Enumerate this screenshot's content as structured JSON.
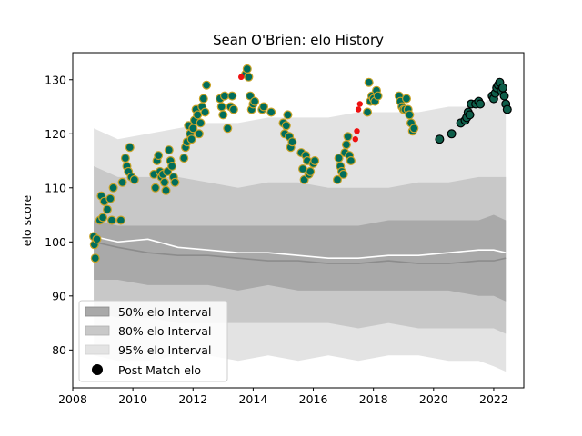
{
  "chart_data": {
    "type": "scatter",
    "title": "Sean O'Brien: elo History",
    "xlabel": "",
    "ylabel": "elo score",
    "xlim": [
      2008.0,
      2023.0
    ],
    "ylim": [
      73.0,
      135.0
    ],
    "xticks": [
      2008,
      2010,
      2012,
      2014,
      2016,
      2018,
      2020,
      2022
    ],
    "yticks": [
      80,
      90,
      100,
      110,
      120,
      130
    ],
    "grid": false,
    "legend_position": "lower-left",
    "legend": [
      {
        "label": "50% elo Interval",
        "kind": "patch",
        "color": "#a9a9a9"
      },
      {
        "label": "80% elo Interval",
        "kind": "patch",
        "color": "#c8c8c8"
      },
      {
        "label": "95% elo Interval",
        "kind": "patch",
        "color": "#e3e3e3"
      },
      {
        "label": "Post Match elo",
        "kind": "marker",
        "color": "#000000"
      }
    ],
    "intervals": {
      "x": [
        2008.7,
        2009.5,
        2010.5,
        2011.5,
        2012.5,
        2013.5,
        2014.5,
        2015.5,
        2016.5,
        2017.5,
        2018.5,
        2019.5,
        2020.5,
        2021.5,
        2022.0,
        2022.4
      ],
      "p95_hi": [
        121,
        119,
        120,
        121,
        122,
        122,
        123,
        123,
        123,
        124,
        124,
        124,
        125,
        125,
        127,
        126
      ],
      "p95_lo": [
        79,
        78,
        78,
        79,
        79,
        78,
        79,
        78,
        79,
        78,
        79,
        79,
        78,
        78,
        77,
        76
      ],
      "p80_hi": [
        114,
        112,
        112,
        112,
        111,
        110,
        111,
        111,
        110,
        110,
        110,
        111,
        111,
        112,
        112,
        112
      ],
      "p80_lo": [
        87,
        86,
        86,
        85,
        85,
        85,
        85,
        85,
        85,
        84,
        85,
        84,
        84,
        84,
        84,
        83
      ],
      "p50_hi": [
        104,
        103,
        103,
        103,
        103,
        103,
        103,
        103,
        103,
        103,
        104,
        104,
        104,
        104,
        105,
        104
      ],
      "p50_lo": [
        93,
        93,
        92,
        92,
        92,
        91,
        92,
        91,
        91,
        91,
        91,
        91,
        91,
        90,
        90,
        89
      ],
      "mean_white": [
        101,
        100,
        100.5,
        99,
        98.5,
        98,
        98,
        97.5,
        97,
        97,
        97.5,
        97.5,
        98,
        98.5,
        98.5,
        98
      ],
      "median_gray": [
        100,
        99,
        98,
        97.5,
        97.5,
        97,
        96.5,
        96.5,
        96,
        96,
        96.5,
        96,
        96,
        96.5,
        96.5,
        97
      ]
    },
    "series": [
      {
        "name": "Post Match elo",
        "style": "blue-gold",
        "fill": "#006d5b",
        "edge": "#c9a227",
        "points": [
          [
            2008.7,
            101
          ],
          [
            2008.72,
            99.5
          ],
          [
            2008.75,
            97
          ],
          [
            2008.8,
            100.5
          ],
          [
            2008.9,
            104
          ],
          [
            2008.95,
            108.5
          ],
          [
            2009.0,
            104.5
          ],
          [
            2009.05,
            107.5
          ],
          [
            2009.15,
            106
          ],
          [
            2009.25,
            108
          ],
          [
            2009.3,
            104
          ],
          [
            2009.35,
            110
          ],
          [
            2009.6,
            104
          ],
          [
            2009.65,
            111
          ],
          [
            2009.75,
            115.5
          ],
          [
            2009.8,
            114
          ],
          [
            2009.85,
            113
          ],
          [
            2009.9,
            117.5
          ],
          [
            2009.95,
            112
          ],
          [
            2010.05,
            111.5
          ],
          [
            2010.7,
            112.5
          ],
          [
            2010.75,
            110
          ],
          [
            2010.8,
            115
          ],
          [
            2010.85,
            116
          ],
          [
            2010.9,
            113
          ],
          [
            2010.95,
            112
          ],
          [
            2011.0,
            112.5
          ],
          [
            2011.05,
            111
          ],
          [
            2011.1,
            109.5
          ],
          [
            2011.15,
            113
          ],
          [
            2011.2,
            117
          ],
          [
            2011.25,
            115
          ],
          [
            2011.3,
            114
          ],
          [
            2011.35,
            112
          ],
          [
            2011.4,
            111
          ],
          [
            2011.7,
            115.5
          ],
          [
            2011.75,
            117.5
          ],
          [
            2011.8,
            118.5
          ],
          [
            2011.85,
            121.5
          ],
          [
            2011.9,
            120
          ],
          [
            2011.95,
            119
          ],
          [
            2012.0,
            121
          ],
          [
            2012.05,
            122.5
          ],
          [
            2012.1,
            124.5
          ],
          [
            2012.15,
            123.5
          ],
          [
            2012.2,
            120
          ],
          [
            2012.25,
            122
          ],
          [
            2012.3,
            125
          ],
          [
            2012.35,
            126.5
          ],
          [
            2012.4,
            124
          ],
          [
            2012.45,
            129
          ],
          [
            2012.9,
            126.5
          ],
          [
            2012.95,
            125
          ],
          [
            2013.0,
            123.5
          ],
          [
            2013.05,
            127
          ],
          [
            2013.15,
            121
          ],
          [
            2013.25,
            125
          ],
          [
            2013.3,
            127
          ],
          [
            2013.35,
            124.5
          ],
          [
            2013.75,
            131
          ],
          [
            2013.8,
            132
          ],
          [
            2013.85,
            130.5
          ],
          [
            2013.9,
            127
          ],
          [
            2013.95,
            124.5
          ],
          [
            2014.0,
            125.5
          ],
          [
            2014.05,
            126
          ],
          [
            2014.3,
            124.5
          ],
          [
            2014.35,
            125
          ],
          [
            2014.6,
            124
          ],
          [
            2015.0,
            122
          ],
          [
            2015.05,
            120
          ],
          [
            2015.1,
            121.5
          ],
          [
            2015.15,
            123.5
          ],
          [
            2015.2,
            119.5
          ],
          [
            2015.25,
            117.5
          ],
          [
            2015.3,
            118.5
          ],
          [
            2015.6,
            116.5
          ],
          [
            2015.65,
            113.5
          ],
          [
            2015.7,
            111.5
          ],
          [
            2015.75,
            116
          ],
          [
            2015.8,
            115
          ],
          [
            2015.85,
            112.5
          ],
          [
            2015.9,
            113
          ],
          [
            2016.0,
            114.5
          ],
          [
            2016.05,
            115
          ],
          [
            2016.8,
            111.5
          ],
          [
            2016.85,
            115.5
          ],
          [
            2016.9,
            114
          ],
          [
            2016.95,
            113
          ],
          [
            2017.0,
            112.5
          ],
          [
            2017.05,
            116.5
          ],
          [
            2017.1,
            118
          ],
          [
            2017.15,
            119.5
          ],
          [
            2017.2,
            116
          ],
          [
            2017.25,
            115
          ],
          [
            2017.8,
            124
          ],
          [
            2017.85,
            129.5
          ],
          [
            2017.9,
            126
          ],
          [
            2017.95,
            127
          ],
          [
            2018.0,
            126.5
          ],
          [
            2018.05,
            126
          ],
          [
            2018.1,
            128
          ],
          [
            2018.15,
            127
          ],
          [
            2018.85,
            127
          ],
          [
            2018.9,
            126
          ],
          [
            2018.95,
            125
          ],
          [
            2019.0,
            124.5
          ],
          [
            2019.05,
            124.5
          ],
          [
            2019.1,
            126.5
          ],
          [
            2019.15,
            124.5
          ],
          [
            2019.2,
            123.5
          ],
          [
            2019.25,
            122
          ],
          [
            2019.3,
            120.5
          ],
          [
            2019.35,
            121
          ]
        ]
      },
      {
        "name": "red",
        "style": "red",
        "fill": "#ee1111",
        "edge": "#ee1111",
        "points": [
          [
            2013.6,
            130.5
          ],
          [
            2017.4,
            119
          ],
          [
            2017.45,
            120.5
          ],
          [
            2017.5,
            124.5
          ],
          [
            2017.55,
            125.5
          ]
        ]
      },
      {
        "name": "dark green",
        "style": "dark-green",
        "fill": "#0e5e4a",
        "edge": "#000000",
        "points": [
          [
            2020.2,
            119
          ],
          [
            2020.6,
            120
          ],
          [
            2020.9,
            122
          ],
          [
            2021.05,
            122.5
          ],
          [
            2021.1,
            123
          ],
          [
            2021.15,
            124
          ],
          [
            2021.2,
            123.5
          ],
          [
            2021.25,
            125.5
          ],
          [
            2021.4,
            125.5
          ],
          [
            2021.5,
            126
          ],
          [
            2021.55,
            125.5
          ],
          [
            2021.95,
            127
          ],
          [
            2022.0,
            126.5
          ],
          [
            2022.05,
            127.5
          ],
          [
            2022.1,
            128.5
          ],
          [
            2022.15,
            129
          ],
          [
            2022.2,
            129.5
          ],
          [
            2022.25,
            128
          ],
          [
            2022.3,
            128.5
          ],
          [
            2022.35,
            127
          ],
          [
            2022.4,
            125.5
          ],
          [
            2022.45,
            124.5
          ]
        ]
      }
    ]
  }
}
